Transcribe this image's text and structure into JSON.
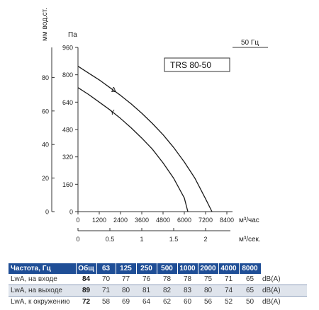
{
  "chart_data": {
    "type": "line",
    "title": "TRS 80-50",
    "frequency_label": "50 Гц",
    "xlabel": "м³/час",
    "x2label": "м³/сек.",
    "ylabel": "Па",
    "y2label": "мм вод.ст.",
    "xlim": [
      0,
      8400
    ],
    "ylim": [
      0,
      960
    ],
    "x_ticks": [
      "0",
      "1200",
      "2400",
      "3600",
      "4800",
      "6000",
      "7200",
      "8400"
    ],
    "x_tick_values": [
      0,
      1200,
      2400,
      3600,
      4800,
      6000,
      7200,
      8400
    ],
    "y_ticks": [
      "0",
      "160",
      "320",
      "480",
      "640",
      "800",
      "960"
    ],
    "y_tick_values": [
      0,
      160,
      320,
      480,
      640,
      800,
      960
    ],
    "x2_ticks": [
      "0",
      "0.5",
      "1",
      "1.5",
      "2"
    ],
    "x2_tick_values": [
      0,
      0.5,
      1,
      1.5,
      2
    ],
    "y2_ticks": [
      "0",
      "20",
      "40",
      "60",
      "80"
    ],
    "y2_tick_values": [
      0,
      20,
      40,
      60,
      80
    ],
    "grid": false,
    "series": [
      {
        "name": "Δ",
        "color": "#1a1a1a",
        "x": [
          0,
          600,
          1200,
          1800,
          2400,
          3000,
          3600,
          4200,
          4800,
          5400,
          6000,
          6600,
          7200,
          7560
        ],
        "y": [
          850,
          810,
          770,
          725,
          680,
          630,
          575,
          515,
          450,
          375,
          290,
          195,
          75,
          0
        ]
      },
      {
        "name": "Y",
        "color": "#1a1a1a",
        "x": [
          0,
          600,
          1200,
          1800,
          2400,
          3000,
          3600,
          4200,
          4800,
          5400,
          6000,
          6200
        ],
        "y": [
          725,
          685,
          640,
          595,
          545,
          490,
          430,
          365,
          285,
          195,
          80,
          0
        ]
      }
    ]
  },
  "table": {
    "header": [
      "Частота, Гц",
      "Общ",
      "63",
      "125",
      "250",
      "500",
      "1000",
      "2000",
      "4000",
      "8000",
      ""
    ],
    "rows": [
      {
        "label": "LwA, на входе",
        "total": "84",
        "values": [
          "70",
          "77",
          "76",
          "78",
          "78",
          "75",
          "71",
          "65"
        ],
        "unit": "dB(A)"
      },
      {
        "label": "LwA, на выходе",
        "total": "89",
        "values": [
          "71",
          "80",
          "81",
          "82",
          "83",
          "80",
          "74",
          "65"
        ],
        "unit": "dB(A)"
      },
      {
        "label": "LwA, к окружению",
        "total": "72",
        "values": [
          "58",
          "69",
          "64",
          "62",
          "60",
          "56",
          "52",
          "50"
        ],
        "unit": "dB(A)"
      }
    ]
  },
  "colors": {
    "header_bg": "#1f4e96",
    "row_shade": "#dfe4ec",
    "curve": "#1a1a1a",
    "axis": "#333333"
  }
}
